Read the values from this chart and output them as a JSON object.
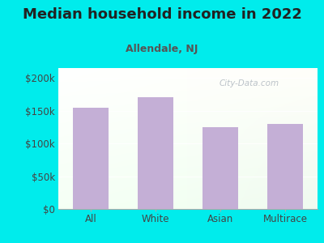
{
  "title": "Median household income in 2022",
  "subtitle": "Allendale, NJ",
  "categories": [
    "All",
    "White",
    "Asian",
    "Multirace"
  ],
  "values": [
    155000,
    170000,
    125000,
    130000
  ],
  "bar_color": "#c4afd6",
  "background_outer": "#00ecec",
  "title_color": "#222222",
  "subtitle_color": "#555555",
  "title_fontsize": 13,
  "subtitle_fontsize": 9,
  "tick_label_fontsize": 8.5,
  "ytick_labels": [
    "$0",
    "$50k",
    "$100k",
    "$150k",
    "$200k"
  ],
  "ytick_values": [
    0,
    50000,
    100000,
    150000,
    200000
  ],
  "ylim": [
    0,
    215000
  ],
  "watermark": "City-Data.com",
  "bg_top_right": "#f5f8f0",
  "bg_bottom_left": "#eef0f8"
}
